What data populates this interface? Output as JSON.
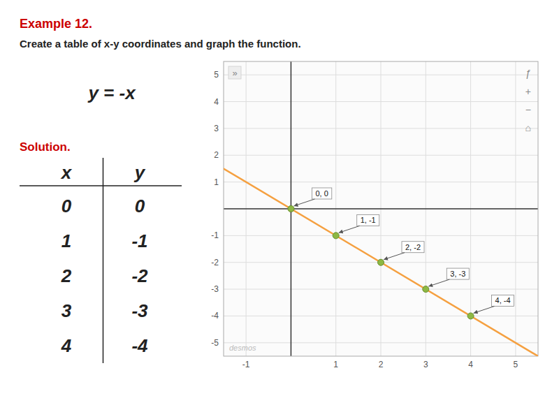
{
  "chart_data": {
    "type": "scatter",
    "title": "Example 12.",
    "subtitle": "Create a table of x-y coordinates and graph the function.",
    "annotations": {
      "equation": "y = -x",
      "solution": "Solution.",
      "watermark": "desmos",
      "panel": "»",
      "icons": [
        "ƒ",
        "+",
        "−",
        "⌂"
      ]
    },
    "table": {
      "columns": [
        "x",
        "y"
      ],
      "x": [
        0,
        1,
        2,
        3,
        4
      ],
      "y": [
        0,
        -1,
        -2,
        -3,
        -4
      ]
    },
    "series": [
      {
        "type": "line",
        "color": "#f5a040",
        "x": [
          -1.5,
          5.5
        ],
        "values": [
          1.5,
          -5.5
        ]
      },
      {
        "type": "scatter",
        "color": "#8db843",
        "x": [
          0,
          1,
          2,
          3,
          4
        ],
        "values": [
          0,
          -1,
          -2,
          -3,
          -4
        ],
        "data_labels": true,
        "value_labels": [
          "0, 0",
          "1, -1",
          "2, -2",
          "3, -3",
          "4, -4"
        ]
      }
    ],
    "xlim": [
      -1.5,
      5.5
    ],
    "ylim": [
      -5.5,
      5.5
    ],
    "xticks": [
      -1,
      {
        "value": 0,
        "label": null
      },
      1,
      2,
      3,
      4,
      5
    ],
    "yticks": [
      -5,
      -4,
      -3,
      -2,
      -1,
      {
        "value": 0,
        "label": null
      },
      1,
      2,
      3,
      4,
      5
    ],
    "grid": true
  }
}
